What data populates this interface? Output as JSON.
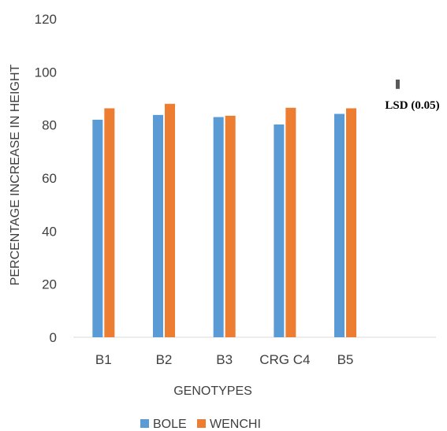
{
  "chart_data": {
    "type": "bar",
    "categories": [
      "B1",
      "B2",
      "B3",
      "CRG C4",
      "B5"
    ],
    "series": [
      {
        "name": "BOLE",
        "color": "#5B9BD5",
        "values": [
          82,
          83.8,
          83,
          80.2,
          84.2
        ]
      },
      {
        "name": "WENCHI",
        "color": "#ED7D31",
        "values": [
          86.3,
          88,
          83.5,
          86.5,
          86.3
        ]
      }
    ],
    "xlabel": "GENOTYPES",
    "ylabel": "PERCENTAGE INCREASE IN HEIGHT",
    "ylim": [
      0,
      120
    ],
    "yticks": [
      0,
      20,
      40,
      60,
      80,
      100,
      120
    ],
    "grid": false,
    "legend_position": "bottom",
    "annotation": {
      "label": "LSD (0.05)",
      "value": 3.5,
      "color": "#595959"
    }
  }
}
